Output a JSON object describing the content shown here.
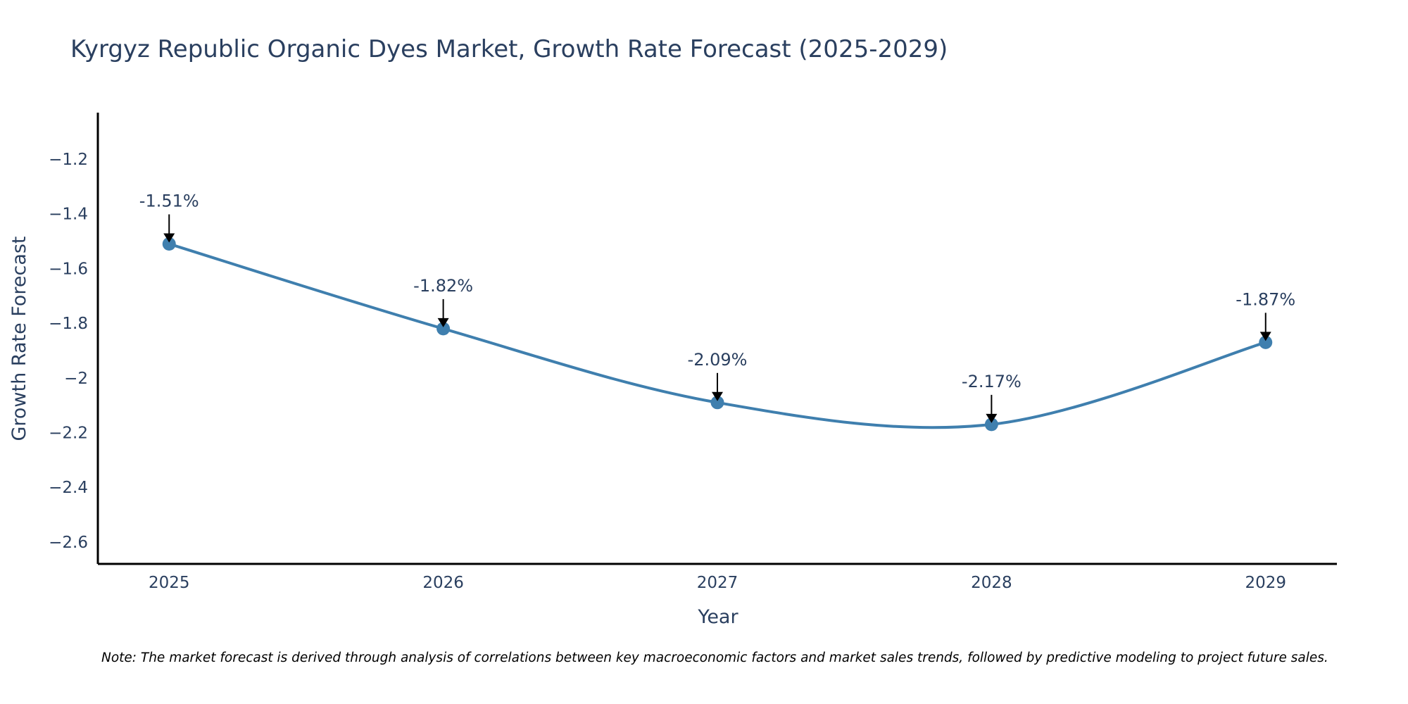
{
  "chart_data": {
    "type": "line",
    "title": "Kyrgyz Republic Organic Dyes Market, Growth Rate Forecast (2025-2029)",
    "xlabel": "Year",
    "ylabel": "Growth Rate Forecast",
    "categories": [
      "2025",
      "2026",
      "2027",
      "2028",
      "2029"
    ],
    "series": [
      {
        "name": "Growth Rate Forecast",
        "values": [
          -1.51,
          -1.82,
          -2.09,
          -2.17,
          -1.87
        ],
        "data_labels": [
          "-1.51%",
          "-1.82%",
          "-2.09%",
          "-2.17%",
          "-1.87%"
        ]
      }
    ],
    "y_ticks": [
      -1.2,
      -1.4,
      -1.6,
      -1.8,
      -2,
      -2.2,
      -2.4,
      -2.6
    ],
    "y_tick_labels": [
      "−1.2",
      "−1.4",
      "−1.6",
      "−1.8",
      "−2",
      "−2.2",
      "−2.4",
      "−2.6"
    ],
    "ylim": [
      -2.68,
      -1.03
    ],
    "xlim": [
      2024.74,
      2029.26
    ],
    "grid": false,
    "legend": "none",
    "line_shape": "spline",
    "colors": {
      "line": "#3f7fae",
      "marker": "#3f7fae",
      "arrow": "#000000",
      "axis": "#000000",
      "text": "#2a3f5f"
    },
    "note": "Note: The market forecast is derived through analysis of correlations between key macroeconomic factors and market sales trends, followed by predictive modeling to project future sales."
  }
}
